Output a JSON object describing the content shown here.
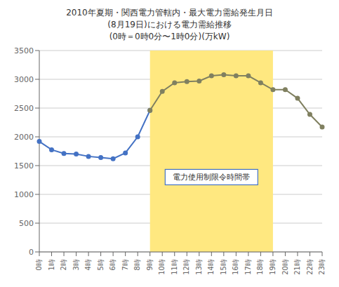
{
  "chart_data": {
    "type": "line",
    "title": "2010年夏期・関西電力管轄内・最大電力需給発生月日\n(8月19日)における電力需給推移\n(0時＝0時0分〜1時0分)(万kW)",
    "categories": [
      "0時",
      "1時",
      "2時",
      "3時",
      "4時",
      "5時",
      "6時",
      "7時",
      "8時",
      "9時",
      "10時",
      "11時",
      "12時",
      "13時",
      "14時",
      "15時",
      "16時",
      "17時",
      "18時",
      "19時",
      "20時",
      "21時",
      "22時",
      "23時"
    ],
    "series": [
      {
        "color": "#4472c4",
        "marker": "o",
        "values": [
          1920,
          1775,
          1710,
          1700,
          1660,
          1640,
          1620,
          1720,
          2000,
          2460,
          null,
          null,
          null,
          null,
          null,
          null,
          null,
          null,
          null,
          null,
          null,
          null,
          null,
          null
        ]
      },
      {
        "color": "#808060",
        "marker": "o",
        "values": [
          null,
          null,
          null,
          null,
          null,
          null,
          null,
          null,
          null,
          2460,
          2790,
          2940,
          2960,
          2970,
          3060,
          3080,
          3060,
          3060,
          2940,
          2820,
          2820,
          2670,
          2390,
          2170
        ]
      }
    ],
    "ylim": [
      0,
      3500
    ],
    "yticks": [
      0,
      500,
      1000,
      1500,
      2000,
      2500,
      3000,
      3500
    ],
    "grid": true,
    "shaded_range": {
      "from": "9時",
      "to": "19時",
      "color": "#ffe880"
    },
    "annotation": {
      "text": "電力使用制限令時間帯",
      "x": "14時",
      "y": 1300,
      "color": "#4472c4"
    }
  }
}
